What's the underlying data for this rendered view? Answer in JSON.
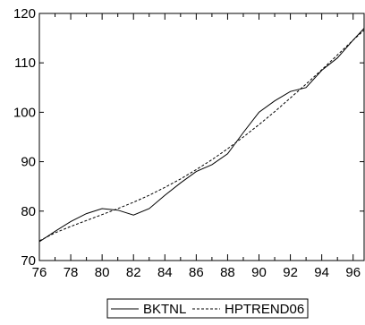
{
  "chart_data": {
    "type": "line",
    "title": "",
    "xlabel": "",
    "ylabel": "",
    "xlim": [
      76,
      96.7
    ],
    "ylim": [
      70,
      120
    ],
    "grid": false,
    "legend_position": "bottom-center",
    "x_ticks": [
      76,
      78,
      80,
      82,
      84,
      86,
      88,
      90,
      92,
      94,
      96
    ],
    "x_tick_labels": [
      "76",
      "78",
      "80",
      "82",
      "84",
      "86",
      "88",
      "90",
      "92",
      "94",
      "96"
    ],
    "y_ticks": [
      70,
      80,
      90,
      100,
      110,
      120
    ],
    "y_tick_labels": [
      "70",
      "80",
      "90",
      "100",
      "110",
      "120"
    ],
    "series": [
      {
        "name": "BKTNL",
        "style": "solid",
        "color": "#000000",
        "x": [
          76,
          77,
          78,
          79,
          80,
          81,
          82,
          83,
          84,
          85,
          86,
          87,
          88,
          89,
          90,
          91,
          92,
          93,
          94,
          95,
          96,
          96.7
        ],
        "y": [
          73.8,
          75.9,
          77.9,
          79.5,
          80.5,
          80.2,
          79.2,
          80.5,
          83.2,
          85.7,
          88.0,
          89.4,
          91.6,
          95.9,
          100.0,
          102.3,
          104.2,
          105.0,
          108.5,
          111.0,
          114.6,
          117.0
        ]
      },
      {
        "name": "HPTREND06",
        "style": "dashed",
        "color": "#000000",
        "x": [
          76,
          77,
          78,
          79,
          80,
          81,
          82,
          83,
          84,
          85,
          86,
          87,
          88,
          89,
          90,
          91,
          92,
          93,
          94,
          95,
          96,
          96.7
        ],
        "y": [
          74.0,
          75.6,
          76.9,
          78.1,
          79.3,
          80.5,
          81.8,
          83.2,
          84.8,
          86.5,
          88.4,
          90.4,
          92.6,
          95.0,
          97.5,
          100.1,
          102.9,
          105.7,
          108.6,
          111.6,
          114.6,
          116.6
        ]
      }
    ]
  }
}
